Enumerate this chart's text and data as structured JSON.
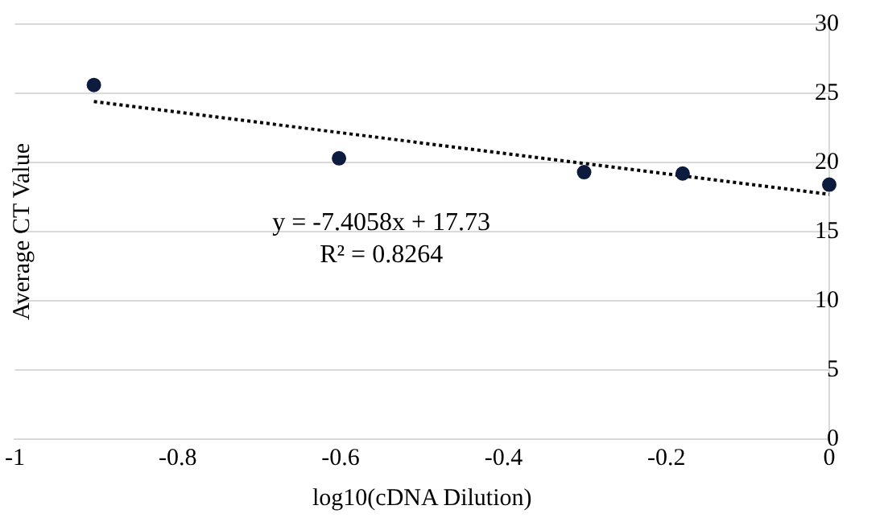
{
  "chart_data": {
    "type": "scatter",
    "xlabel": "log10(cDNA Dilution)",
    "ylabel": "Average CT Value",
    "xlim": [
      -1,
      0
    ],
    "xticks": [
      -1,
      -0.8,
      -0.6,
      -0.4,
      -0.2,
      0
    ],
    "ylim": [
      0,
      30
    ],
    "yticks": [
      0,
      5,
      10,
      15,
      20,
      25,
      30
    ],
    "grid": "y",
    "marker": "circle",
    "series": [
      {
        "color": "#0d1b3e",
        "x": [
          -0.903,
          -0.602,
          -0.301,
          -0.18,
          0
        ],
        "values": [
          25.6,
          20.3,
          19.3,
          19.2,
          18.4
        ]
      },
      {
        "type": "line",
        "color": "#000000",
        "line_style": "dotted",
        "marker": "none",
        "x": [
          -0.903,
          0
        ],
        "values": [
          24.4,
          17.7
        ]
      }
    ],
    "annotations": [
      "y = -7.4058x + 17.73",
      "R² = 0.8264"
    ]
  }
}
